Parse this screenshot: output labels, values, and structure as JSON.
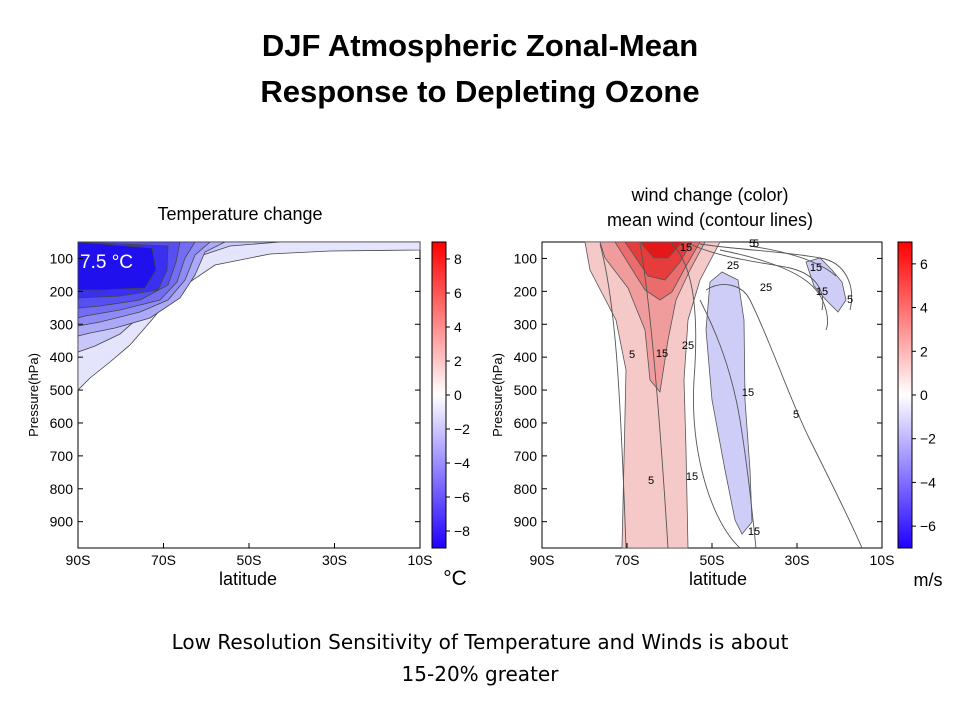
{
  "page": {
    "title_line1": "DJF Atmospheric Zonal-Mean",
    "title_line2": "Response to Depleting Ozone",
    "footer_line1": "Low Resolution Sensitivity of Temperature and Winds is about",
    "footer_line2": "15-20% greater"
  },
  "chart_data": [
    {
      "type": "heatmap",
      "title": "Temperature change",
      "xlabel": "latitude",
      "ylabel": "Pressure(hPa)",
      "x_ticks": [
        "90S",
        "70S",
        "50S",
        "30S",
        "10S"
      ],
      "y_ticks": [
        100,
        200,
        300,
        400,
        500,
        600,
        700,
        800,
        900
      ],
      "ylim": [
        50,
        980
      ],
      "y_reversed": true,
      "annotation": "7.5 °C",
      "max_value": 7.5,
      "max_location": {
        "lat": "~85S",
        "pressure": 200
      },
      "colorbar": {
        "unit": "°C",
        "ticks": [
          8,
          6,
          4,
          2,
          0,
          -2,
          -4,
          -6,
          -8
        ],
        "min": -9,
        "max": 9,
        "colors": [
          "#2000ff",
          "#ffffff",
          "#ff0000"
        ]
      }
    },
    {
      "type": "heatmap",
      "title": "wind change (color)",
      "subtitle": "mean wind (contour lines)",
      "xlabel": "latitude",
      "ylabel": "Pressure(hPa)",
      "x_ticks": [
        "90S",
        "70S",
        "50S",
        "30S",
        "10S"
      ],
      "y_ticks": [
        100,
        200,
        300,
        400,
        500,
        600,
        700,
        800,
        900
      ],
      "ylim": [
        50,
        980
      ],
      "y_reversed": true,
      "contour_labels": [
        "15",
        "5",
        "25",
        "15",
        "25",
        "15",
        "5",
        "5",
        "15",
        "25",
        "15",
        "5",
        "15",
        "5",
        "15",
        "5"
      ],
      "colorbar": {
        "unit": "m/s",
        "ticks": [
          6,
          4,
          2,
          0,
          -2,
          -4,
          -6
        ],
        "min": -7,
        "max": 7,
        "colors": [
          "#2000ff",
          "#ffffff",
          "#ff0000"
        ]
      }
    }
  ]
}
